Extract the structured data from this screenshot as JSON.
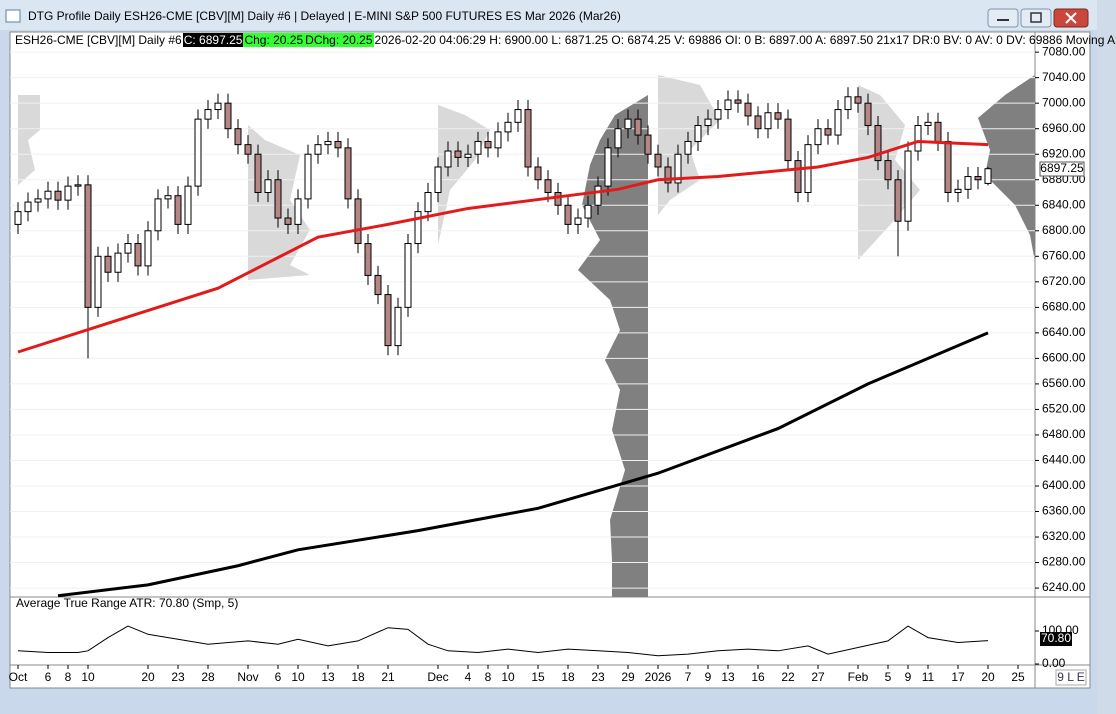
{
  "window": {
    "title": "DTG Profile Daily ESH26-CME [CBV][M]  Daily #6 | Delayed | E-MINI S&P 500 FUTURES ES Mar 2026 (Mar26)"
  },
  "header": {
    "symbol": "ESH26-CME [CBV][M]  Daily #6",
    "close": "C: 6897.25",
    "change": "Chg: 20.25",
    "dchange": "DChg: 20.25",
    "details": "2026-02-20 04:06:29 H: 6900.00 L: 6871.25 O: 6874.25 V: 69886 OI: 0 B: 6897.00 A: 6897.50 21x17 DR:0 BV: 0 AV: 0 DV: 69886 Moving A"
  },
  "status": "9 L E",
  "chart_data": [
    {
      "type": "candlestick",
      "up_color": "#ffffff",
      "down_color": "#b48686",
      "last_label": "6897.25",
      "xlim": [
        -0.6,
        101.7
      ],
      "xticks": [
        {
          "value": 0,
          "label": "Oct"
        },
        {
          "value": 3,
          "label": "6"
        },
        {
          "value": 5,
          "label": "8"
        },
        {
          "value": 7,
          "label": "10"
        },
        {
          "value": 13,
          "label": "20"
        },
        {
          "value": 16,
          "label": "23"
        },
        {
          "value": 19,
          "label": "28"
        },
        {
          "value": 23,
          "label": "Nov"
        },
        {
          "value": 26,
          "label": "6"
        },
        {
          "value": 28,
          "label": "10"
        },
        {
          "value": 31,
          "label": "13"
        },
        {
          "value": 34,
          "label": "18"
        },
        {
          "value": 37,
          "label": "21"
        },
        {
          "value": 42,
          "label": "Dec"
        },
        {
          "value": 45,
          "label": "4"
        },
        {
          "value": 47,
          "label": "8"
        },
        {
          "value": 49,
          "label": "10"
        },
        {
          "value": 52,
          "label": "15"
        },
        {
          "value": 55,
          "label": "18"
        },
        {
          "value": 58,
          "label": "23"
        },
        {
          "value": 61,
          "label": "29"
        },
        {
          "value": 64,
          "label": "2026"
        },
        {
          "value": 67,
          "label": "7"
        },
        {
          "value": 69,
          "label": "9"
        },
        {
          "value": 71,
          "label": "13"
        },
        {
          "value": 74,
          "label": "16"
        },
        {
          "value": 77,
          "label": "22"
        },
        {
          "value": 80,
          "label": "27"
        },
        {
          "value": 84,
          "label": "Feb"
        },
        {
          "value": 87,
          "label": "5"
        },
        {
          "value": 89,
          "label": "9"
        },
        {
          "value": 91,
          "label": "11"
        },
        {
          "value": 94,
          "label": "17"
        },
        {
          "value": 97,
          "label": "20"
        },
        {
          "value": 100,
          "label": "25"
        }
      ],
      "ylim": [
        6226,
        7110
      ],
      "yticks": [
        {
          "value": 6240,
          "label": "6240.00"
        },
        {
          "value": 6280,
          "label": "6280.00"
        },
        {
          "value": 6320,
          "label": "6320.00"
        },
        {
          "value": 6360,
          "label": "6360.00"
        },
        {
          "value": 6400,
          "label": "6400.00"
        },
        {
          "value": 6440,
          "label": "6440.00"
        },
        {
          "value": 6480,
          "label": "6480.00"
        },
        {
          "value": 6520,
          "label": "6520.00"
        },
        {
          "value": 6560,
          "label": "6560.00"
        },
        {
          "value": 6600,
          "label": "6600.00"
        },
        {
          "value": 6640,
          "label": "6640.00"
        },
        {
          "value": 6680,
          "label": "6680.00"
        },
        {
          "value": 6720,
          "label": "6720.00"
        },
        {
          "value": 6760,
          "label": "6760.00"
        },
        {
          "value": 6800,
          "label": "6800.00"
        },
        {
          "value": 6840,
          "label": "6840.00"
        },
        {
          "value": 6880,
          "label": "6880.00"
        },
        {
          "value": 6920,
          "label": "6920.00"
        },
        {
          "value": 6960,
          "label": "6960.00"
        },
        {
          "value": 7000,
          "label": "7000.00"
        },
        {
          "value": 7040,
          "label": "7040.00"
        },
        {
          "value": 7080,
          "label": "7080.00"
        }
      ],
      "open": [
        6810,
        6830,
        6845,
        6850,
        6862,
        6848,
        6870,
        6872,
        6680,
        6760,
        6735,
        6765,
        6780,
        6745,
        6800,
        6850,
        6855,
        6810,
        6870,
        6975,
        6990,
        7000,
        6960,
        6935,
        6920,
        6860,
        6880,
        6820,
        6810,
        6850,
        6920,
        6935,
        6940,
        6930,
        6850,
        6780,
        6730,
        6700,
        6620,
        6680,
        6780,
        6830,
        6860,
        6900,
        6925,
        6915,
        6920,
        6940,
        6930,
        6955,
        6970,
        6990,
        6900,
        6880,
        6860,
        6840,
        6810,
        6820,
        6840,
        6870,
        6930,
        6960,
        6975,
        6950,
        6920,
        6900,
        6875,
        6920,
        6940,
        6965,
        6975,
        6990,
        7005,
        7000,
        6980,
        6960,
        6985,
        6975,
        6910,
        6860,
        6935,
        6960,
        6950,
        6990,
        7010,
        7000,
        6965,
        6910,
        6880,
        6815,
        6925,
        6965,
        6970,
        6940,
        6860,
        6865,
        6885,
        6874.25
      ],
      "high": [
        6845,
        6860,
        6865,
        6877,
        6877,
        6885,
        6887,
        6887,
        6775,
        6775,
        6780,
        6795,
        6795,
        6815,
        6865,
        6870,
        6870,
        6885,
        6990,
        7005,
        7015,
        7015,
        6975,
        6950,
        6935,
        6895,
        6895,
        6835,
        6865,
        6935,
        6950,
        6955,
        6955,
        6945,
        6865,
        6795,
        6745,
        6715,
        6695,
        6795,
        6845,
        6875,
        6915,
        6940,
        6940,
        6935,
        6955,
        6955,
        6970,
        6985,
        7005,
        7005,
        6915,
        6895,
        6875,
        6855,
        6835,
        6855,
        6885,
        6945,
        6975,
        6990,
        6990,
        6965,
        6935,
        6915,
        6935,
        6955,
        6980,
        6990,
        7005,
        7020,
        7020,
        7015,
        6995,
        7000,
        7000,
        6990,
        6925,
        6950,
        6975,
        6975,
        7005,
        7025,
        7025,
        7015,
        6980,
        6925,
        6895,
        6940,
        6980,
        6985,
        6985,
        6955,
        6880,
        6900,
        6900,
        6900
      ],
      "low": [
        6795,
        6815,
        6830,
        6835,
        6833,
        6833,
        6855,
        6600,
        6665,
        6720,
        6720,
        6750,
        6730,
        6730,
        6785,
        6835,
        6795,
        6795,
        6855,
        6960,
        6975,
        6945,
        6920,
        6905,
        6845,
        6845,
        6805,
        6795,
        6795,
        6835,
        6905,
        6920,
        6915,
        6835,
        6765,
        6715,
        6685,
        6605,
        6605,
        6665,
        6765,
        6815,
        6845,
        6885,
        6900,
        6900,
        6905,
        6915,
        6915,
        6940,
        6955,
        6885,
        6865,
        6845,
        6825,
        6795,
        6795,
        6805,
        6825,
        6855,
        6915,
        6945,
        6935,
        6905,
        6885,
        6860,
        6860,
        6905,
        6925,
        6950,
        6960,
        6975,
        6985,
        6965,
        6945,
        6945,
        6960,
        6895,
        6845,
        6845,
        6920,
        6935,
        6935,
        6975,
        6985,
        6950,
        6895,
        6865,
        6760,
        6800,
        6910,
        6950,
        6925,
        6845,
        6845,
        6850,
        6865,
        6871.25
      ],
      "close": [
        6830,
        6845,
        6850,
        6862,
        6848,
        6870,
        6872,
        6680,
        6760,
        6735,
        6765,
        6780,
        6745,
        6800,
        6850,
        6855,
        6810,
        6870,
        6975,
        6990,
        7000,
        6960,
        6935,
        6920,
        6860,
        6880,
        6820,
        6810,
        6850,
        6920,
        6935,
        6940,
        6930,
        6850,
        6780,
        6730,
        6700,
        6620,
        6680,
        6780,
        6830,
        6860,
        6900,
        6925,
        6915,
        6920,
        6940,
        6930,
        6955,
        6970,
        6990,
        6900,
        6880,
        6860,
        6840,
        6810,
        6820,
        6840,
        6870,
        6930,
        6960,
        6975,
        6950,
        6920,
        6900,
        6875,
        6920,
        6940,
        6965,
        6975,
        6990,
        7005,
        7000,
        6980,
        6960,
        6985,
        6975,
        6910,
        6860,
        6935,
        6960,
        6950,
        6990,
        7010,
        7000,
        6965,
        6910,
        6880,
        6815,
        6925,
        6965,
        6970,
        6940,
        6860,
        6865,
        6885,
        6880,
        6897.25
      ],
      "series": [
        {
          "color": "#e31a1a",
          "x": [
            0,
            10,
            20,
            30,
            37,
            45,
            55,
            60,
            64,
            70,
            80,
            85,
            90,
            97
          ],
          "values": [
            6610,
            6660,
            6710,
            6790,
            6810,
            6835,
            6855,
            6865,
            6880,
            6885,
            6900,
            6915,
            6940,
            6935
          ]
        },
        {
          "color": "#000000",
          "x": [
            4,
            13,
            22,
            28,
            40,
            52,
            64,
            76,
            85,
            97
          ],
          "values": [
            6228,
            6245,
            6275,
            6300,
            6330,
            6365,
            6420,
            6490,
            6560,
            6640
          ]
        }
      ]
    },
    {
      "type": "line",
      "title": "Average True Range  ATR: 70.80  (Smp, 5)",
      "last_label": "70.80",
      "color": "#000000",
      "xlim": [
        -0.6,
        101.7
      ],
      "ylim": [
        -3,
        203
      ],
      "yticks": [
        {
          "value": 0,
          "label": "0.00"
        },
        {
          "value": 100,
          "label": "100.00"
        }
      ],
      "x": [
        0,
        3,
        6,
        7,
        9,
        11,
        13,
        16,
        19,
        23,
        26,
        28,
        31,
        34,
        37,
        39,
        41,
        43,
        46,
        49,
        52,
        55,
        58,
        61,
        64,
        67,
        70,
        73,
        76,
        79,
        81,
        84,
        87,
        89,
        91,
        94,
        97
      ],
      "values": [
        40,
        35,
        35,
        40,
        80,
        115,
        90,
        75,
        60,
        70,
        60,
        75,
        55,
        70,
        110,
        105,
        60,
        40,
        35,
        45,
        35,
        45,
        40,
        35,
        25,
        30,
        40,
        45,
        40,
        55,
        30,
        50,
        70,
        115,
        80,
        65,
        70.8
      ]
    }
  ]
}
